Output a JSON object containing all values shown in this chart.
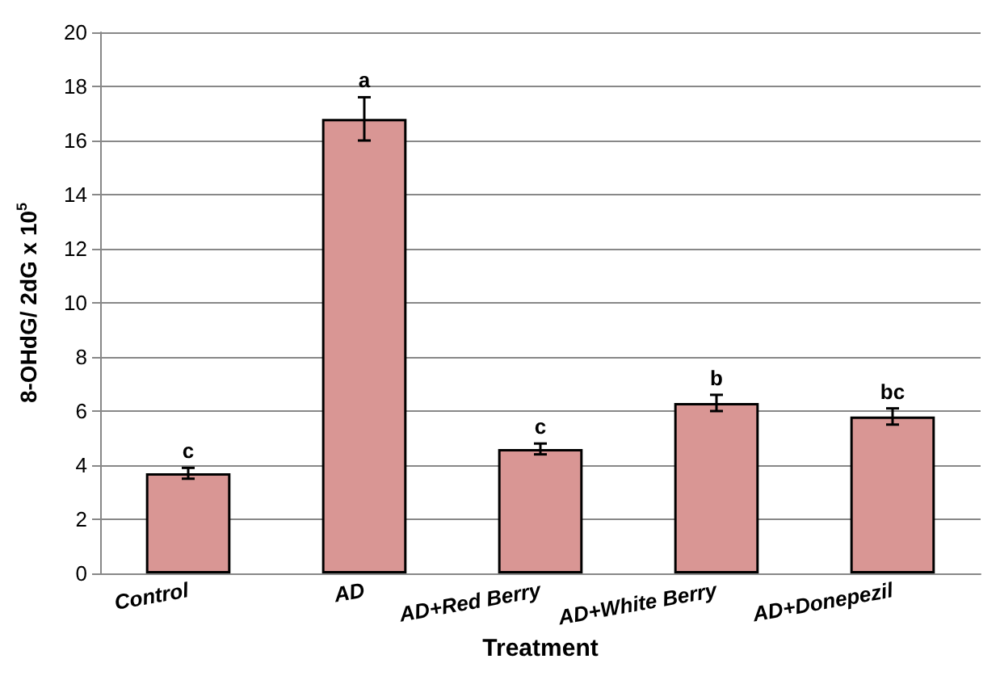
{
  "chart_data": {
    "type": "bar",
    "xlabel": "Treatment",
    "ylabel": "8-OHdG/ 2dG x 10$^{5}$",
    "categories": [
      "Control",
      "AD",
      "AD+Red Berry",
      "AD+White Berry",
      "AD+Donepezil"
    ],
    "values": [
      3.7,
      16.8,
      4.6,
      6.3,
      5.8
    ],
    "errors": [
      0.2,
      0.8,
      0.2,
      0.3,
      0.3
    ],
    "color": "#d99694",
    "ylim": [
      0,
      20
    ],
    "yticks": [
      0,
      2,
      4,
      6,
      8,
      10,
      12,
      14,
      16,
      18,
      20
    ],
    "grid": "y",
    "annotations": [
      "c",
      "a",
      "c",
      "b",
      "bc"
    ]
  }
}
